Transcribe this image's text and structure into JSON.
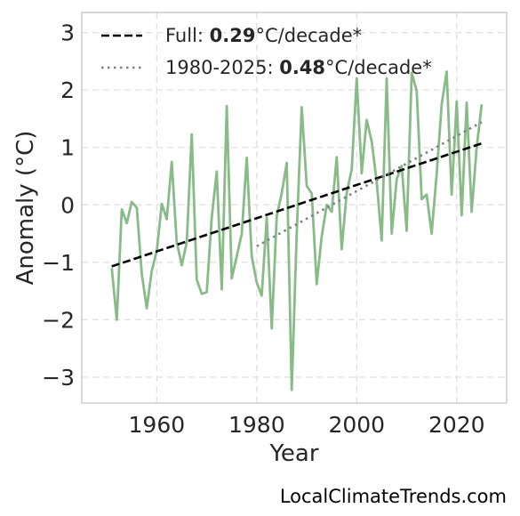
{
  "chart_data": {
    "type": "line",
    "title": "",
    "xlabel": "Year",
    "ylabel": "Anomaly (°C)",
    "xlim": [
      1945,
      2030
    ],
    "ylim": [
      -3.45,
      3.35
    ],
    "xticks": [
      1960,
      1980,
      2000,
      2020
    ],
    "yticks": [
      -3,
      -2,
      -1,
      0,
      1,
      2,
      3
    ],
    "ytick_labels": [
      "−3",
      "−2",
      "−1",
      "0",
      "1",
      "2",
      "3"
    ],
    "grid": true,
    "legend_position": "top-left",
    "series": [
      {
        "kind": "data",
        "color": "#88bb88",
        "x": [
          1951,
          1952,
          1953,
          1954,
          1955,
          1956,
          1957,
          1958,
          1959,
          1960,
          1961,
          1962,
          1963,
          1964,
          1965,
          1966,
          1967,
          1968,
          1969,
          1970,
          1971,
          1972,
          1973,
          1974,
          1975,
          1976,
          1977,
          1978,
          1979,
          1980,
          1981,
          1982,
          1983,
          1984,
          1985,
          1986,
          1987,
          1988,
          1989,
          1990,
          1991,
          1992,
          1993,
          1994,
          1995,
          1996,
          1997,
          1998,
          1999,
          2000,
          2001,
          2002,
          2003,
          2004,
          2005,
          2006,
          2007,
          2008,
          2009,
          2010,
          2011,
          2012,
          2013,
          2014,
          2015,
          2016,
          2017,
          2018,
          2019,
          2020,
          2021,
          2022,
          2023,
          2024,
          2025
        ],
        "y": [
          -1.1,
          -2.0,
          -0.08,
          -0.32,
          0.05,
          -0.05,
          -1.2,
          -1.8,
          -1.15,
          -0.8,
          0.02,
          -0.25,
          0.75,
          -0.65,
          -1.05,
          -0.65,
          1.23,
          -1.3,
          -1.55,
          -1.52,
          -0.22,
          0.58,
          -1.47,
          1.72,
          -1.28,
          -0.9,
          -0.5,
          0.82,
          -0.9,
          -1.35,
          -1.58,
          -0.22,
          -2.15,
          -0.2,
          0.2,
          0.73,
          -3.22,
          -0.5,
          1.7,
          0.33,
          0.2,
          -1.38,
          -0.55,
          0.0,
          -0.12,
          0.83,
          -0.77,
          0.2,
          0.62,
          2.2,
          0.55,
          1.48,
          1.1,
          0.4,
          -0.62,
          2.2,
          -0.5,
          0.45,
          0.68,
          -0.45,
          2.3,
          1.98,
          0.1,
          0.18,
          -0.5,
          0.55,
          1.75,
          2.32,
          0.18,
          1.8,
          -0.18,
          1.78,
          -0.12,
          1.0,
          1.75
        ]
      },
      {
        "kind": "trend",
        "style": "dashed",
        "color": "#000000",
        "x": [
          1951,
          2025
        ],
        "y": [
          -1.07,
          1.07
        ]
      },
      {
        "kind": "trend",
        "style": "dotted",
        "color": "#808080",
        "x": [
          1980,
          2025
        ],
        "y": [
          -0.72,
          1.44
        ]
      }
    ],
    "legend": [
      {
        "prefix": "Full: ",
        "value": "0.29",
        "suffix": "°C/decade*",
        "style": "dashed",
        "color": "#000000"
      },
      {
        "prefix": "1980-2025: ",
        "value": "0.48",
        "suffix": "°C/decade*",
        "style": "dotted",
        "color": "#808080"
      }
    ]
  },
  "watermark": "LocalClimateTrends.com"
}
